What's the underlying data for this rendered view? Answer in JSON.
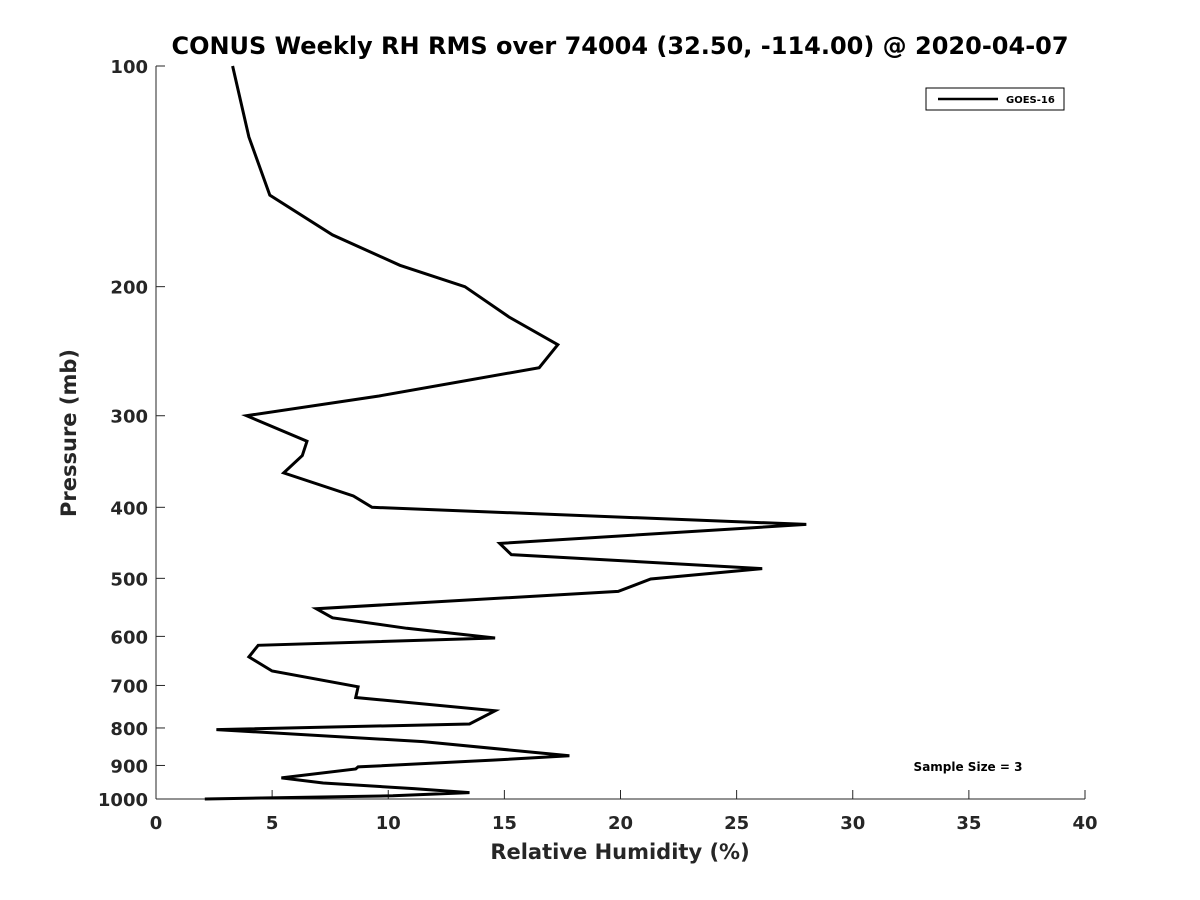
{
  "chart_data": {
    "type": "line",
    "title": "CONUS Weekly RH RMS over 74004 (32.50, -114.00) @ 2020-04-07",
    "xlabel": "Relative Humidity (%)",
    "ylabel": "Pressure (mb)",
    "xlim": [
      0,
      40
    ],
    "ylim": [
      100,
      1000
    ],
    "y_scale": "log",
    "y_reversed": true,
    "xticks": [
      0,
      5,
      10,
      15,
      20,
      25,
      30,
      35,
      40
    ],
    "yticks": [
      100,
      200,
      300,
      400,
      500,
      600,
      700,
      800,
      900,
      1000
    ],
    "grid": false,
    "legend_position": "top-right",
    "annotation": "Sample Size = 3",
    "series": [
      {
        "name": "GOES-16",
        "color": "#000000",
        "x": [
          3.3,
          4.0,
          4.9,
          7.6,
          10.5,
          13.3,
          15.2,
          17.3,
          16.5,
          9.6,
          3.9,
          6.5,
          6.3,
          5.5,
          8.5,
          9.3,
          28.0,
          14.8,
          15.3,
          26.1,
          21.3,
          19.9,
          6.9,
          7.6,
          10.8,
          14.6,
          4.4,
          4.0,
          5.0,
          8.7,
          8.6,
          14.6,
          13.5,
          2.6,
          11.5,
          17.8,
          14.5,
          8.7,
          8.6,
          5.4,
          7.2,
          11.1,
          13.5,
          10.2,
          2.1
        ],
        "y": [
          100,
          125,
          150,
          170,
          187,
          200,
          220,
          240,
          258,
          282,
          300,
          325,
          340,
          359,
          386,
          400,
          422,
          448,
          464,
          485,
          501,
          521,
          550,
          566,
          585,
          603,
          617,
          640,
          669,
          703,
          727,
          758,
          790,
          804,
          835,
          873,
          885,
          904,
          910,
          936,
          951,
          968,
          980,
          990,
          1000
        ]
      }
    ]
  }
}
